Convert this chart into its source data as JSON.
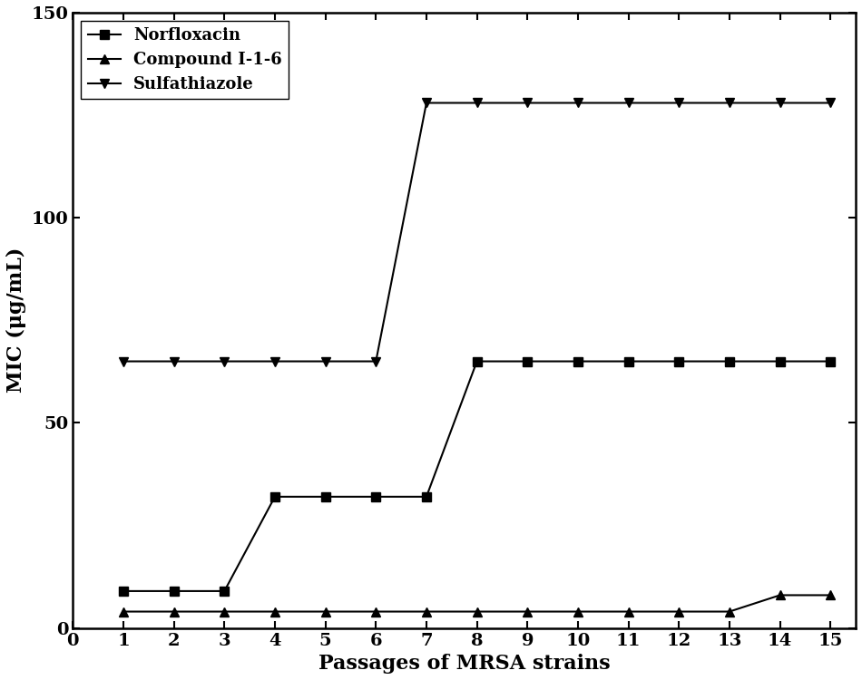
{
  "passages": [
    1,
    2,
    3,
    4,
    5,
    6,
    7,
    8,
    9,
    10,
    11,
    12,
    13,
    14,
    15
  ],
  "norfloxacin": [
    9,
    9,
    9,
    32,
    32,
    32,
    32,
    65,
    65,
    65,
    65,
    65,
    65,
    65,
    65
  ],
  "compound_116": [
    4,
    4,
    4,
    4,
    4,
    4,
    4,
    4,
    4,
    4,
    4,
    4,
    4,
    8,
    8
  ],
  "sulfathiazole": [
    65,
    65,
    65,
    65,
    65,
    65,
    128,
    128,
    128,
    128,
    128,
    128,
    128,
    128,
    128
  ],
  "norfloxacin_label": "Norfloxacin",
  "compound_116_label": "Compound I-1-6",
  "sulfathiazole_label": "Sulfathiazole",
  "xlabel": "Passages of MRSA strains",
  "ylabel": "MIC (μg/mL)",
  "xlim": [
    0,
    15.5
  ],
  "ylim": [
    0,
    150
  ],
  "yticks": [
    0,
    50,
    100,
    150
  ],
  "xticks": [
    0,
    1,
    2,
    3,
    4,
    5,
    6,
    7,
    8,
    9,
    10,
    11,
    12,
    13,
    14,
    15
  ],
  "line_color": "#000000",
  "background_color": "#ffffff",
  "legend_loc": "upper left",
  "linewidth": 1.5,
  "markersize": 7,
  "tick_fontsize": 14,
  "label_fontsize": 16,
  "legend_fontsize": 13
}
